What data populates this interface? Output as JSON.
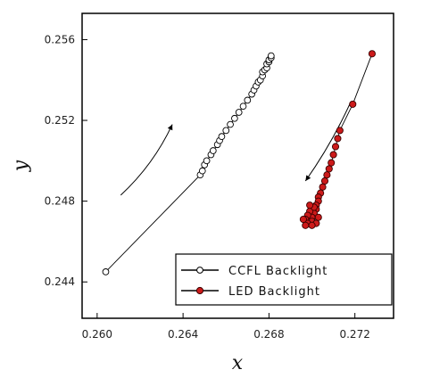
{
  "chart_data": {
    "type": "scatter",
    "xlabel": "x",
    "ylabel": "y",
    "xlim": [
      0.2593,
      0.2738
    ],
    "ylim": [
      0.2422,
      0.2573
    ],
    "xticks": [
      "0.260",
      "0.264",
      "0.268",
      "0.272"
    ],
    "yticks": [
      "0.244",
      "0.248",
      "0.252",
      "0.256"
    ],
    "xtick_values": [
      0.26,
      0.264,
      0.268,
      0.272
    ],
    "ytick_values": [
      0.244,
      0.248,
      0.252,
      0.256
    ],
    "grid": false,
    "legend_position": "bottom-right",
    "series": [
      {
        "name": "CCFL Backlight",
        "marker": "open-circle",
        "color": "#000000",
        "x": [
          0.2604,
          0.2648,
          0.2649,
          0.265,
          0.2651,
          0.2653,
          0.2654,
          0.2656,
          0.2657,
          0.2658,
          0.266,
          0.2662,
          0.2664,
          0.2666,
          0.2668,
          0.267,
          0.2672,
          0.2673,
          0.2674,
          0.2675,
          0.2676,
          0.2677,
          0.2677,
          0.2678,
          0.2679,
          0.2679,
          0.268,
          0.268,
          0.2681,
          0.2681
        ],
        "y": [
          0.2445,
          0.2493,
          0.2495,
          0.2498,
          0.25,
          0.2503,
          0.2505,
          0.2508,
          0.251,
          0.2512,
          0.2515,
          0.2518,
          0.2521,
          0.2524,
          0.2527,
          0.253,
          0.2533,
          0.2535,
          0.2537,
          0.2539,
          0.254,
          0.2542,
          0.2544,
          0.2545,
          0.2546,
          0.2548,
          0.2549,
          0.255,
          0.2551,
          0.2552
        ]
      },
      {
        "name": "LED Backlight",
        "marker": "filled-circle",
        "color": "#cc1a1a",
        "x": [
          0.2728,
          0.2719,
          0.2713,
          0.2712,
          0.2711,
          0.271,
          0.2709,
          0.2708,
          0.2707,
          0.2706,
          0.2705,
          0.2704,
          0.2703,
          0.2703,
          0.2702,
          0.2702,
          0.2701,
          0.27,
          0.27,
          0.2699,
          0.2701,
          0.2703,
          0.2698,
          0.2697,
          0.2699,
          0.2702,
          0.2698,
          0.27,
          0.2696,
          0.2697
        ],
        "y": [
          0.2553,
          0.2528,
          0.2515,
          0.2511,
          0.2507,
          0.2503,
          0.2499,
          0.2496,
          0.2493,
          0.249,
          0.2487,
          0.2484,
          0.2482,
          0.248,
          0.2478,
          0.2476,
          0.2474,
          0.2472,
          0.247,
          0.2475,
          0.2477,
          0.2472,
          0.2473,
          0.2471,
          0.2478,
          0.2469,
          0.2469,
          0.2468,
          0.2471,
          0.2468
        ]
      }
    ],
    "annotations": [
      {
        "type": "arrow",
        "from": [
          0.2611,
          0.2483
        ],
        "to": [
          0.2635,
          0.2518
        ],
        "curve": 0.0004
      },
      {
        "type": "arrow",
        "from": [
          0.2718,
          0.2529
        ],
        "to": [
          0.2697,
          0.249
        ],
        "curve": -0.0002
      }
    ]
  },
  "colors": {
    "axis": "#000000",
    "ccfl_edge": "#000000",
    "ccfl_fill": "#ffffff",
    "led_fill": "#cc1a1a",
    "led_edge": "#3a0000"
  }
}
